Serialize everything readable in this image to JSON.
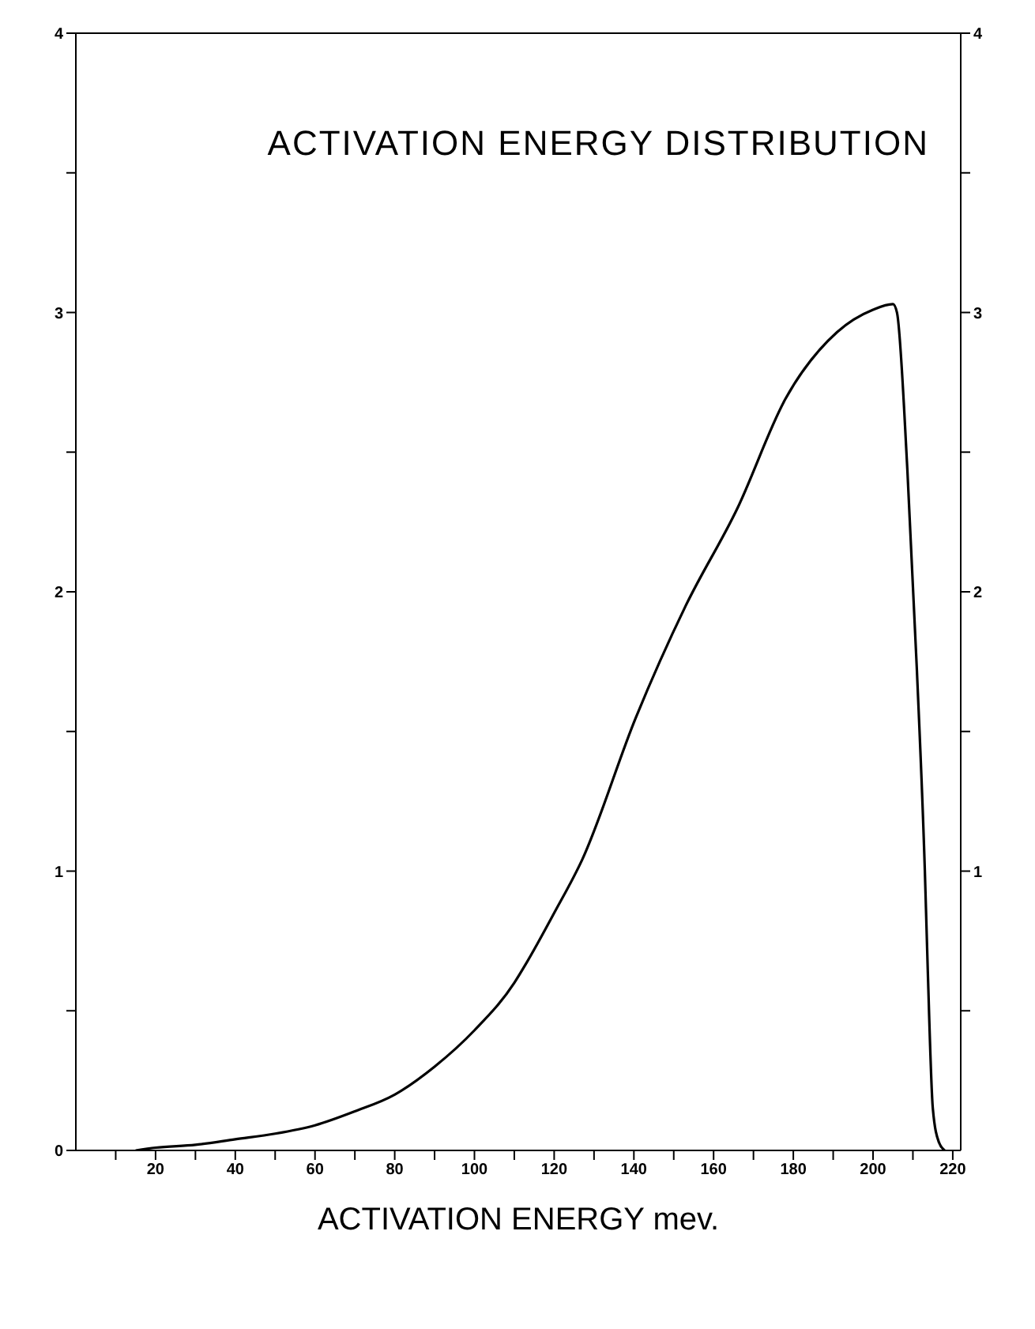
{
  "chart_data": {
    "type": "line",
    "title": "ACTIVATION ENERGY DISTRIBUTION",
    "xlabel": "ACTIVATION ENERGY mev.",
    "x": [
      15,
      20,
      30,
      40,
      50,
      60,
      70,
      80,
      90,
      100,
      110,
      113,
      120,
      127,
      140.5,
      153,
      166,
      178,
      191,
      200,
      205,
      206,
      208.6,
      211,
      213,
      213.7,
      215,
      216.5,
      218
    ],
    "series": [
      {
        "color": "#000000",
        "values": [
          0,
          0.01,
          0.02,
          0.04,
          0.06,
          0.09,
          0.14,
          0.2,
          0.3,
          0.43,
          0.6,
          0.67,
          0.85,
          1.04,
          1.55,
          1.95,
          2.3,
          2.69,
          2.93,
          3.01,
          3.03,
          3.0,
          2.44,
          1.72,
          1.0,
          0.66,
          0.15,
          0.03,
          0
        ]
      }
    ],
    "xlim": [
      0,
      222
    ],
    "xticks": [
      {
        "value": 10,
        "label": null
      },
      20,
      {
        "value": 30,
        "label": null
      },
      40,
      {
        "value": 50,
        "label": null
      },
      60,
      {
        "value": 70,
        "label": null
      },
      80,
      {
        "value": 90,
        "label": null
      },
      100,
      {
        "value": 110,
        "label": null
      },
      120,
      {
        "value": 130,
        "label": null
      },
      140,
      {
        "value": 150,
        "label": null
      },
      160,
      {
        "value": 170,
        "label": null
      },
      180,
      {
        "value": 190,
        "label": null
      },
      200,
      {
        "value": 210,
        "label": null
      },
      220
    ],
    "ylim": [
      0,
      4
    ],
    "yticks": [
      0,
      {
        "value": 0.5,
        "label": null
      },
      1,
      {
        "value": 1.5,
        "label": null
      },
      2,
      {
        "value": 2.5,
        "label": null
      },
      3,
      {
        "value": 3.5,
        "label": null
      },
      4
    ],
    "y2lim": [
      0,
      4
    ],
    "y2ticks": [
      {
        "value": 0.5,
        "label": null
      },
      1,
      {
        "value": 1.5,
        "label": null
      },
      2,
      {
        "value": 2.5,
        "label": null
      },
      3,
      {
        "value": 3.5,
        "label": null
      },
      4
    ],
    "grid": false,
    "legend": false,
    "marker": "none",
    "line_style": "solid"
  }
}
